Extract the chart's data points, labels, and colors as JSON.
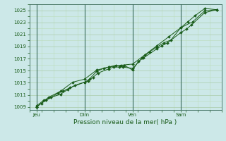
{
  "title": "",
  "xlabel": "Pression niveau de la mer( hPa )",
  "ylabel": "",
  "bg_color": "#cce8e8",
  "grid_color_major": "#aaccaa",
  "grid_color_minor": "#bbddbb",
  "line_color": "#1a5c1a",
  "ylim": [
    1008.5,
    1026.0
  ],
  "yticks": [
    1009,
    1011,
    1013,
    1015,
    1017,
    1019,
    1021,
    1023,
    1025
  ],
  "xlim": [
    0,
    8.0
  ],
  "day_positions": [
    0.3,
    2.3,
    4.3,
    6.3
  ],
  "day_labels": [
    "Jeu",
    "Dim",
    "Ven",
    "Sam"
  ],
  "vline_positions": [
    0.3,
    2.3,
    4.3,
    6.3
  ],
  "vline_color": "#3a6a5a",
  "line1_x": [
    0.3,
    0.5,
    0.7,
    1.2,
    1.4,
    1.7,
    2.3,
    2.45,
    2.65,
    2.85,
    3.3,
    3.5,
    3.75,
    3.95,
    4.3,
    4.55,
    4.75,
    5.3,
    5.5,
    5.75,
    6.3,
    6.55,
    6.75,
    7.3,
    7.8
  ],
  "line1_y": [
    1009.0,
    1009.6,
    1010.1,
    1011.3,
    1011.6,
    1012.2,
    1013.1,
    1013.3,
    1013.9,
    1014.6,
    1015.3,
    1015.6,
    1015.6,
    1015.9,
    1015.1,
    1016.6,
    1017.1,
    1018.6,
    1019.1,
    1019.6,
    1021.3,
    1021.9,
    1022.6,
    1024.6,
    1025.1
  ],
  "line2_x": [
    0.3,
    0.6,
    0.9,
    1.3,
    1.6,
    1.9,
    2.3,
    2.5,
    2.8,
    3.1,
    3.3,
    3.6,
    3.9,
    4.3,
    4.7,
    5.0,
    5.3,
    5.6,
    5.9,
    6.3,
    6.6,
    6.9,
    7.3,
    7.8
  ],
  "line2_y": [
    1009.2,
    1010.1,
    1010.6,
    1011.1,
    1011.9,
    1012.6,
    1013.1,
    1013.6,
    1014.9,
    1015.4,
    1015.6,
    1015.9,
    1015.6,
    1015.4,
    1017.1,
    1018.1,
    1018.9,
    1019.6,
    1020.1,
    1022.1,
    1023.1,
    1024.1,
    1025.3,
    1025.1
  ],
  "line3_x": [
    0.3,
    0.8,
    1.3,
    1.8,
    2.3,
    2.8,
    3.3,
    3.8,
    4.3,
    4.8,
    5.3,
    5.8,
    6.3,
    6.8,
    7.3,
    7.8
  ],
  "line3_y": [
    1009.0,
    1010.6,
    1011.6,
    1013.1,
    1013.6,
    1015.1,
    1015.6,
    1015.9,
    1016.1,
    1017.6,
    1019.1,
    1020.6,
    1022.1,
    1023.1,
    1024.9,
    1025.1
  ],
  "marker_size": 2.0,
  "linewidth": 0.7,
  "tick_fontsize": 5.0,
  "xlabel_fontsize": 6.5
}
